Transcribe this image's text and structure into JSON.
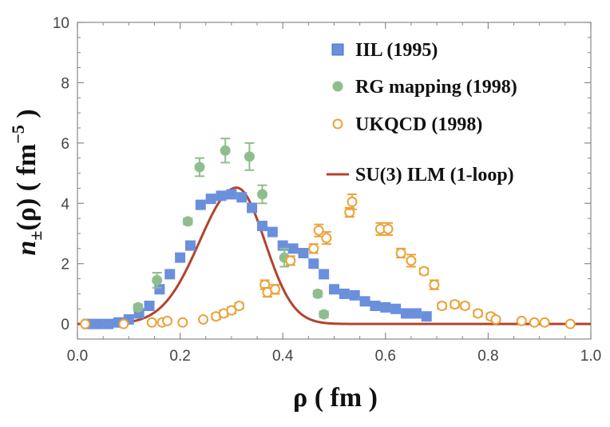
{
  "chart_data": {
    "type": "scatter",
    "xlabel": "ρ ( fm )",
    "ylabel_parts": [
      "n",
      "±",
      "(ρ) ( fm",
      "−5",
      " )"
    ],
    "xlim": [
      0,
      1.0
    ],
    "ylim": [
      -0.5,
      10
    ],
    "xticks": [
      "0.0",
      "0.2",
      "0.4",
      "0.6",
      "0.8",
      "1.0"
    ],
    "xtick_values": [
      0,
      0.2,
      0.4,
      0.6,
      0.8,
      1.0
    ],
    "yticks": [
      "0",
      "2",
      "4",
      "6",
      "8",
      "10"
    ],
    "ytick_values": [
      0,
      2,
      4,
      6,
      8,
      10
    ],
    "grid": false,
    "legend_position": "top-right",
    "colors": {
      "iil": "#6a8fdc",
      "rg": "#8fbe8d",
      "ukqcd": "#eba23a",
      "ilm": "#b2442c",
      "axis": "#888888"
    },
    "series": [
      {
        "name": "IIL (1995)",
        "marker": "square",
        "x": [
          0.02,
          0.04,
          0.06,
          0.08,
          0.1,
          0.12,
          0.14,
          0.16,
          0.18,
          0.2,
          0.22,
          0.24,
          0.26,
          0.28,
          0.3,
          0.32,
          0.34,
          0.36,
          0.38,
          0.4,
          0.42,
          0.44,
          0.46,
          0.48,
          0.5,
          0.52,
          0.54,
          0.56,
          0.58,
          0.6,
          0.62,
          0.64,
          0.66,
          0.68
        ],
        "y": [
          0.0,
          0.0,
          0.0,
          0.05,
          0.15,
          0.35,
          0.6,
          1.15,
          1.65,
          2.2,
          2.6,
          3.95,
          4.15,
          4.25,
          4.3,
          4.2,
          3.85,
          3.25,
          3.05,
          2.6,
          2.5,
          2.35,
          2.0,
          1.65,
          1.15,
          1.0,
          0.95,
          0.75,
          0.6,
          0.55,
          0.5,
          0.35,
          0.35,
          0.25
        ]
      },
      {
        "name": "RG mapping (1998)",
        "marker": "circle",
        "x": [
          0.118,
          0.155,
          0.215,
          0.238,
          0.288,
          0.335,
          0.36,
          0.403,
          0.468,
          0.48
        ],
        "y": [
          0.55,
          1.45,
          3.4,
          5.2,
          5.75,
          5.55,
          4.3,
          2.2,
          1.0,
          0.32
        ],
        "err": [
          0.1,
          0.25,
          0.1,
          0.3,
          0.4,
          0.45,
          0.3,
          0.3,
          0.1,
          0.1
        ]
      },
      {
        "name": "UKQCD (1998)",
        "marker": "open-circle",
        "x": [
          0.015,
          0.09,
          0.145,
          0.165,
          0.175,
          0.205,
          0.245,
          0.27,
          0.285,
          0.3,
          0.315,
          0.365,
          0.37,
          0.385,
          0.415,
          0.46,
          0.47,
          0.485,
          0.53,
          0.535,
          0.59,
          0.605,
          0.63,
          0.65,
          0.675,
          0.695,
          0.71,
          0.735,
          0.755,
          0.78,
          0.805,
          0.815,
          0.865,
          0.89,
          0.91,
          0.96
        ],
        "y": [
          0.0,
          0.0,
          0.05,
          0.05,
          0.1,
          0.05,
          0.15,
          0.25,
          0.35,
          0.45,
          0.6,
          1.3,
          1.05,
          1.15,
          2.1,
          2.5,
          3.1,
          2.85,
          3.7,
          4.05,
          3.15,
          3.15,
          2.35,
          2.1,
          1.75,
          1.3,
          0.6,
          0.65,
          0.6,
          0.35,
          0.25,
          0.15,
          0.1,
          0.05,
          0.05,
          0.0
        ],
        "err": [
          0,
          0,
          0,
          0,
          0,
          0,
          0,
          0.1,
          0.1,
          0.1,
          0.1,
          0.15,
          0.15,
          0.15,
          0.15,
          0.15,
          0.2,
          0.2,
          0.15,
          0.25,
          0.2,
          0.2,
          0.15,
          0.2,
          0.1,
          0.15,
          0.1,
          0.1,
          0.1,
          0.1,
          0.1,
          0.05,
          0,
          0,
          0,
          0
        ]
      },
      {
        "name": "SU(3) ILM (1-loop)",
        "marker": "line",
        "curve": {
          "peak_x": 0.31,
          "peak_y": 4.52,
          "sigma_left": 0.072,
          "sigma_right": 0.055,
          "x_start": 0.0,
          "x_end": 1.0
        }
      }
    ]
  }
}
